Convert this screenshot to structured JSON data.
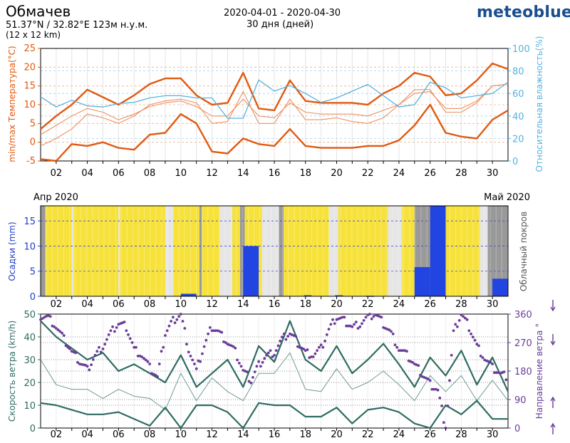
{
  "header": {
    "location": "Обмачев",
    "coords": "51.37°N / 32.82°E   123м н.у.м.",
    "grid": "(12 x 12 km)",
    "date_range": "2020-04-01 - 2020-04-30",
    "days": "30 дня (дней)",
    "brand": "meteoblue"
  },
  "colors": {
    "temp_max": "#e05a10",
    "temp_thin": "#ee9060",
    "humidity": "#55b4e0",
    "cloud_yellow": "#f7e23c",
    "cloud_gray": "#999999",
    "precip": "#2244e0",
    "wind": "#2f6b62",
    "wind_dir": "#6a3d9a"
  },
  "x_ticks": [
    "02",
    "04",
    "06",
    "08",
    "10",
    "12",
    "14",
    "16",
    "18",
    "20",
    "22",
    "24",
    "26",
    "28",
    "30"
  ],
  "month_labels": {
    "left": "Апр 2020",
    "right": "Май 2020"
  },
  "chart_data": [
    {
      "type": "line",
      "ylabel": "min/max Температура(°C)",
      "y2label": "Относительная влажность(%)",
      "ylim": [
        -5,
        25
      ],
      "y2lim": [
        0,
        100
      ],
      "yticks": [
        -5,
        0,
        5,
        10,
        15,
        20,
        25
      ],
      "y2ticks": [
        0,
        20,
        40,
        60,
        80,
        100
      ],
      "x": [
        1,
        2,
        3,
        4,
        5,
        6,
        7,
        8,
        9,
        10,
        11,
        12,
        13,
        14,
        15,
        16,
        17,
        18,
        19,
        20,
        21,
        22,
        23,
        24,
        25,
        26,
        27,
        28,
        29,
        30,
        31
      ],
      "series": [
        {
          "role": "max",
          "values": [
            3.5,
            7,
            10,
            14,
            12,
            10,
            12.5,
            15.5,
            17,
            17,
            12.5,
            10,
            10.5,
            18.5,
            9,
            8.5,
            16.5,
            11,
            10.5,
            10.5,
            10.5,
            10,
            13,
            15,
            18.5,
            17.5,
            12.5,
            13,
            16.5,
            21,
            19.5
          ]
        },
        {
          "role": "min",
          "values": [
            -4.5,
            -5,
            -0.5,
            -1,
            0,
            -1.5,
            -2,
            2,
            2.5,
            7.5,
            5,
            -2.5,
            -3,
            1,
            -0.5,
            -1,
            3.5,
            -1,
            -1.5,
            -1.5,
            -1.5,
            -1,
            -1,
            0.5,
            4.5,
            10,
            2.5,
            1.5,
            1,
            6,
            8.5
          ]
        },
        {
          "role": "thin-upper",
          "values": [
            2,
            4.5,
            7,
            9,
            8,
            6,
            7.5,
            9.5,
            10.5,
            11,
            9.5,
            7,
            7,
            11.5,
            7,
            6.5,
            10.5,
            8,
            7.5,
            7.5,
            7.5,
            7,
            8.5,
            10,
            13,
            13.5,
            9,
            9,
            11,
            15,
            15.5
          ]
        },
        {
          "role": "thin-lower",
          "values": [
            -1,
            1,
            3.5,
            7.5,
            6.5,
            5,
            7,
            10,
            11,
            11.5,
            10.5,
            5,
            5.5,
            13.5,
            5,
            5,
            11.5,
            6,
            6,
            6.5,
            5.5,
            5,
            6.5,
            10,
            14,
            14,
            8,
            8,
            10.5,
            15,
            15.5
          ]
        },
        {
          "role": "humidity",
          "values": [
            57,
            48,
            54,
            49,
            48,
            51,
            52,
            56,
            58,
            58,
            56,
            56,
            38,
            38,
            72,
            62,
            67,
            60,
            52,
            56,
            62,
            68,
            58,
            48,
            50,
            70,
            65,
            56,
            58,
            60,
            70
          ]
        }
      ]
    },
    {
      "type": "bar",
      "ylabel": "Осадки (mm)",
      "y2label": "Облачный покров",
      "ylim": [
        0,
        18
      ],
      "yticks": [
        0,
        5,
        10,
        15
      ],
      "precip": [
        {
          "start": 10,
          "end": 11,
          "value": 0.5
        },
        {
          "start": 14,
          "end": 15,
          "value": 10
        },
        {
          "start": 17.9,
          "end": 18.4,
          "value": 0.2
        },
        {
          "start": 19.9,
          "end": 20.4,
          "value": 0.2
        },
        {
          "start": 21.9,
          "end": 22.4,
          "value": 0.1
        },
        {
          "start": 25,
          "end": 26,
          "value": 5.8
        },
        {
          "start": 26,
          "end": 27,
          "value": 18
        },
        {
          "start": 30,
          "end": 31,
          "value": 3.5
        }
      ],
      "cloud_segments": [
        {
          "start": 1,
          "end": 1.3,
          "c": "gray"
        },
        {
          "start": 1.3,
          "end": 3,
          "c": "yellow"
        },
        {
          "start": 3,
          "end": 3.12,
          "c": "light"
        },
        {
          "start": 3.12,
          "end": 6,
          "c": "yellow"
        },
        {
          "start": 6,
          "end": 6.1,
          "c": "light"
        },
        {
          "start": 6.1,
          "end": 9,
          "c": "yellow"
        },
        {
          "start": 9,
          "end": 9.5,
          "c": "light"
        },
        {
          "start": 9.5,
          "end": 11.2,
          "c": "yellow"
        },
        {
          "start": 11.2,
          "end": 11.35,
          "c": "gray"
        },
        {
          "start": 11.35,
          "end": 12.5,
          "c": "yellow"
        },
        {
          "start": 12.5,
          "end": 13.3,
          "c": "light"
        },
        {
          "start": 13.3,
          "end": 13.8,
          "c": "yellow"
        },
        {
          "start": 13.8,
          "end": 14.1,
          "c": "gray"
        },
        {
          "start": 14.1,
          "end": 15.2,
          "c": "yellow"
        },
        {
          "start": 15.2,
          "end": 16.3,
          "c": "light"
        },
        {
          "start": 16.3,
          "end": 16.6,
          "c": "gray"
        },
        {
          "start": 16.6,
          "end": 19.5,
          "c": "yellow"
        },
        {
          "start": 19.5,
          "end": 20.1,
          "c": "light"
        },
        {
          "start": 20.1,
          "end": 23.3,
          "c": "yellow"
        },
        {
          "start": 23.3,
          "end": 24.2,
          "c": "light"
        },
        {
          "start": 24.2,
          "end": 25,
          "c": "yellow"
        },
        {
          "start": 25,
          "end": 26,
          "c": "gray"
        },
        {
          "start": 26,
          "end": 27,
          "c": "gray"
        },
        {
          "start": 27,
          "end": 29.2,
          "c": "yellow"
        },
        {
          "start": 29.2,
          "end": 29.7,
          "c": "light"
        },
        {
          "start": 29.7,
          "end": 31,
          "c": "gray"
        }
      ]
    },
    {
      "type": "line",
      "ylabel": "Скорость ветра (km/h)",
      "y2label": "Направление ветра °",
      "ylim": [
        0,
        50
      ],
      "y2lim": [
        0,
        360
      ],
      "yticks": [
        0,
        10,
        20,
        30,
        40,
        50
      ],
      "y2ticks": [
        0,
        90,
        180,
        270,
        360
      ],
      "x": [
        1,
        2,
        3,
        4,
        5,
        6,
        7,
        8,
        9,
        10,
        11,
        12,
        13,
        14,
        15,
        16,
        17,
        18,
        19,
        20,
        21,
        22,
        23,
        24,
        25,
        26,
        27,
        28,
        29,
        30,
        31
      ],
      "series": [
        {
          "role": "max",
          "values": [
            47,
            40,
            35,
            30,
            33,
            25,
            28,
            24,
            20,
            32,
            18,
            24,
            30,
            18,
            36,
            29,
            47,
            30,
            25,
            36,
            24,
            30,
            37,
            28,
            18,
            31,
            23,
            34,
            19,
            31,
            16
          ]
        },
        {
          "role": "mean",
          "values": [
            30,
            19,
            17,
            17,
            13,
            17,
            14,
            13,
            8,
            24,
            12,
            22,
            16,
            12,
            24,
            24,
            33,
            17,
            16,
            26,
            17,
            20,
            25,
            19,
            12,
            23,
            16,
            23,
            12,
            21,
            12
          ]
        },
        {
          "role": "min",
          "values": [
            11,
            10,
            8,
            6,
            6,
            7,
            4,
            1,
            9,
            0,
            10,
            10,
            7,
            0,
            11,
            10,
            10,
            5,
            5,
            9,
            2,
            8,
            9,
            7,
            2,
            0,
            10,
            6,
            12,
            4,
            4
          ]
        },
        {
          "role": "direction",
          "x": [
            1,
            1.5,
            2,
            2.5,
            3,
            3.5,
            4,
            4.5,
            5,
            5.5,
            6,
            6.5,
            7,
            7.5,
            8,
            8.5,
            9,
            9.5,
            10,
            10.5,
            11,
            11.5,
            12,
            12.5,
            13,
            13.5,
            14,
            14.5,
            15,
            15.5,
            16,
            16.5,
            17,
            17.5,
            18,
            18.5,
            19,
            19.5,
            20,
            20.5,
            21,
            21.5,
            22,
            22.5,
            23,
            23.5,
            24,
            24.5,
            25,
            25.5,
            26,
            26.5,
            27,
            27.5,
            28,
            28.5,
            29,
            29.5,
            30,
            30.5,
            31
          ],
          "values": [
            355,
            350,
            320,
            280,
            240,
            210,
            185,
            230,
            260,
            300,
            330,
            320,
            250,
            230,
            190,
            160,
            300,
            340,
            360,
            250,
            180,
            260,
            320,
            300,
            270,
            240,
            180,
            150,
            200,
            230,
            240,
            280,
            300,
            270,
            240,
            230,
            250,
            310,
            350,
            340,
            320,
            330,
            350,
            360,
            330,
            300,
            250,
            230,
            200,
            170,
            140,
            120,
            0,
            300,
            360,
            320,
            260,
            220,
            190,
            170,
            160
          ]
        }
      ]
    }
  ]
}
